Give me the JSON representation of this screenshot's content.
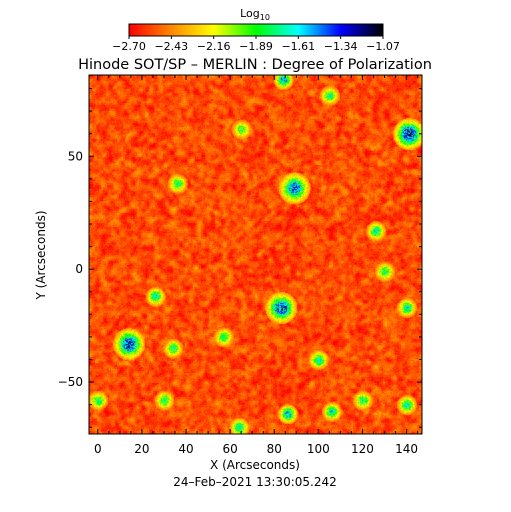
{
  "chart_data": {
    "type": "heatmap",
    "title": "Hinode SOT/SP – MERLIN : Degree of Polarization",
    "xlabel": "X (Arcseconds)",
    "ylabel": "Y (Arcseconds)",
    "xlim": [
      -4,
      147
    ],
    "ylim": [
      -73,
      86
    ],
    "x_ticks": [
      0,
      20,
      40,
      60,
      80,
      100,
      120,
      140
    ],
    "y_ticks": [
      -50,
      0,
      50
    ],
    "x_tick_labels": [
      "0",
      "20",
      "40",
      "60",
      "80",
      "100",
      "120",
      "140"
    ],
    "y_tick_labels": [
      "−50",
      "0",
      "50"
    ],
    "colorbar": {
      "label_base": "Log",
      "label_sub": "10",
      "range": [
        -2.7,
        -1.07
      ],
      "tick_labels": [
        "−2.70",
        "−2.43",
        "−2.16",
        "−1.89",
        "−1.61",
        "−1.34",
        "−1.07"
      ],
      "colormap": [
        "#ff0000",
        "#ff8800",
        "#ffff00",
        "#00ff00",
        "#00ffff",
        "#0000ff",
        "#000000"
      ]
    },
    "field_mean_log10": -2.55,
    "patches": [
      {
        "x": 84,
        "y": 84,
        "peak": -1.4
      },
      {
        "x": 105,
        "y": 77,
        "peak": -1.7
      },
      {
        "x": 141,
        "y": 60,
        "peak": -1.1
      },
      {
        "x": 89,
        "y": 36,
        "peak": -1.3
      },
      {
        "x": 36,
        "y": 38,
        "peak": -1.7
      },
      {
        "x": 65,
        "y": 62,
        "peak": -1.8
      },
      {
        "x": 126,
        "y": 17,
        "peak": -1.6
      },
      {
        "x": 130,
        "y": -1,
        "peak": -1.7
      },
      {
        "x": 26,
        "y": -12,
        "peak": -1.6
      },
      {
        "x": 83,
        "y": -17,
        "peak": -1.2
      },
      {
        "x": 140,
        "y": -17,
        "peak": -1.6
      },
      {
        "x": 14,
        "y": -33,
        "peak": -1.2
      },
      {
        "x": 34,
        "y": -35,
        "peak": -1.7
      },
      {
        "x": 57,
        "y": -30,
        "peak": -1.7
      },
      {
        "x": 100,
        "y": -40,
        "peak": -1.6
      },
      {
        "x": 0,
        "y": -58,
        "peak": -1.7
      },
      {
        "x": 30,
        "y": -58,
        "peak": -1.7
      },
      {
        "x": 106,
        "y": -63,
        "peak": -1.6
      },
      {
        "x": 120,
        "y": -58,
        "peak": -1.7
      },
      {
        "x": 64,
        "y": -70,
        "peak": -1.6
      },
      {
        "x": 86,
        "y": -64,
        "peak": -1.4
      },
      {
        "x": 140,
        "y": -60,
        "peak": -1.6
      }
    ]
  },
  "footer": {
    "timestamp": "24–Feb–2021 13:30:05.242"
  }
}
